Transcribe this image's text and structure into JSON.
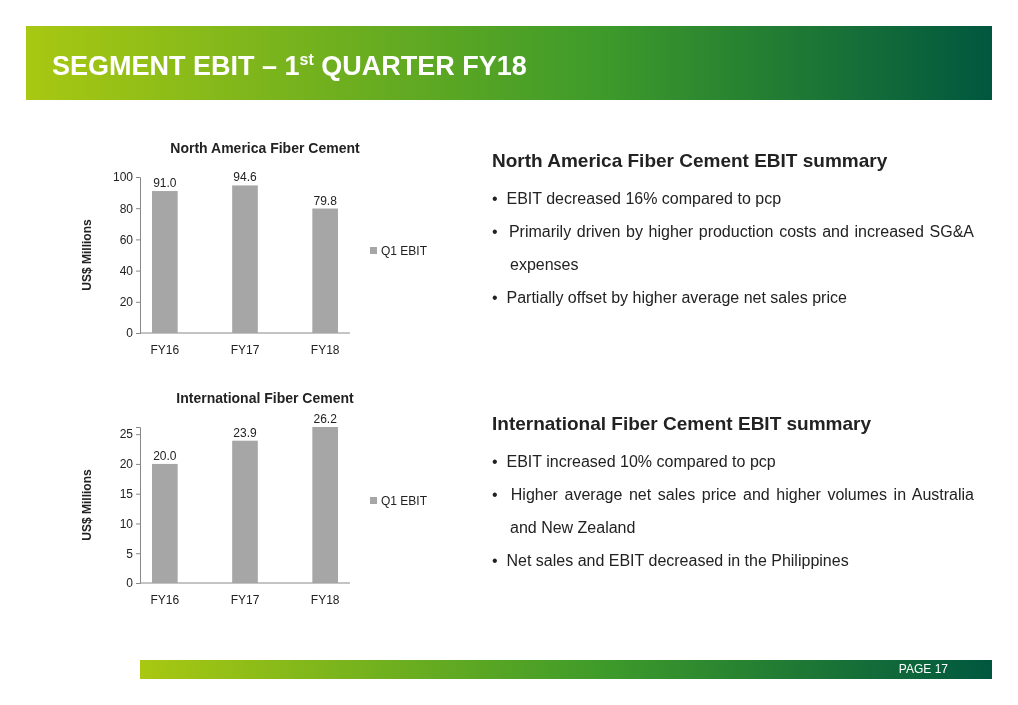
{
  "chart_data": [
    {
      "type": "other",
      "title": "SEGMENT EBIT – 1$^{st}$  QUARTER FY18",
      "annotations": [
        "PAGE  17"
      ]
    },
    {
      "type": "bar",
      "title": "North America Fiber Cement",
      "ylabel": "US$ Millions",
      "categories": [
        "FY16",
        "FY17",
        "FY18"
      ],
      "series": [
        {
          "name": "Q1 EBIT",
          "color": "#a6a6a6",
          "values": [
            91.0,
            94.6,
            79.8
          ],
          "value_labels": [
            "91.0",
            "94.6",
            "79.8"
          ]
        }
      ],
      "ylim": [
        0,
        100
      ],
      "yticks": [
        0,
        20,
        40,
        60,
        80,
        100
      ],
      "grid": false,
      "legend": "right"
    },
    {
      "type": "other",
      "title": "North America Fiber Cement EBIT summary",
      "annotations": [
        "•  EBIT decreased 16% compared to pcp",
        "•  Primarily driven by higher production costs and increased SG&A expenses",
        "•  Partially offset by higher average net sales price"
      ]
    },
    {
      "type": "bar",
      "title": "International Fiber Cement",
      "ylabel": "US$ Millions",
      "categories": [
        "FY16",
        "FY17",
        "FY18"
      ],
      "series": [
        {
          "name": "Q1 EBIT",
          "color": "#a6a6a6",
          "values": [
            20.0,
            23.9,
            26.2
          ],
          "value_labels": [
            "20.0",
            "23.9",
            "26.2"
          ]
        }
      ],
      "ylim": [
        0,
        26.2
      ],
      "yticks": [
        0,
        5,
        10,
        15,
        20,
        25
      ],
      "grid": false,
      "legend": "right"
    },
    {
      "type": "other",
      "title": "International Fiber Cement EBIT summary",
      "annotations": [
        "•  EBIT increased 10% compared to pcp",
        "•  Higher average net sales price and higher volumes in Australia and New Zealand",
        "•  Net sales and EBIT decreased in the Philippines"
      ]
    }
  ]
}
